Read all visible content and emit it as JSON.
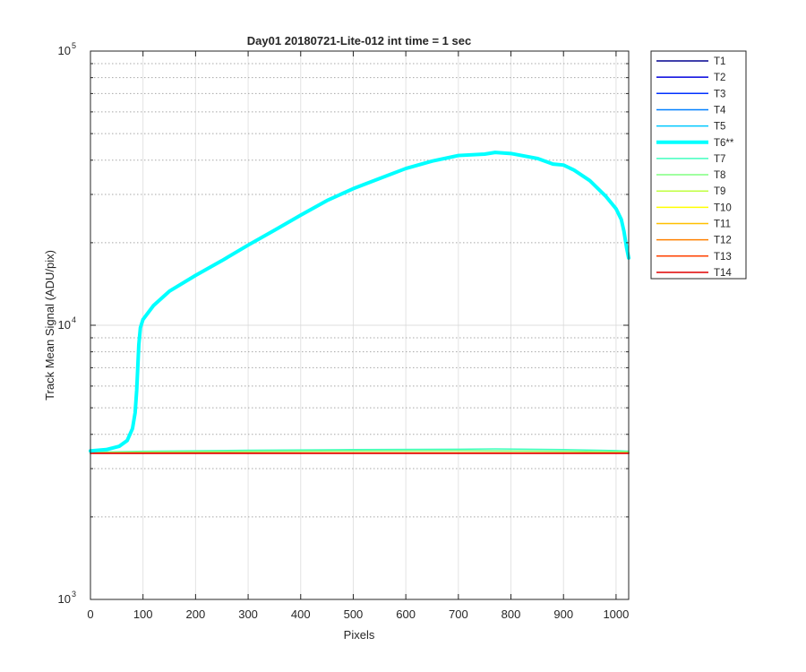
{
  "chart_data": {
    "type": "line",
    "title": "Day01 20180721-Lite-012 int time = 1 sec",
    "xlabel": "Pixels",
    "ylabel": "Track Mean Signal (ADU/pix)",
    "xlim": [
      0,
      1024
    ],
    "ylim": [
      1000,
      100000
    ],
    "yscale": "log",
    "grid": true,
    "legend_position": "outside-top-right",
    "x_ticks": [
      "0",
      "100",
      "200",
      "300",
      "400",
      "500",
      "600",
      "700",
      "800",
      "900",
      "1000"
    ],
    "y_ticks": [
      {
        "base": "10",
        "exp": "3"
      },
      {
        "base": "10",
        "exp": "4"
      },
      {
        "base": "10",
        "exp": "5"
      }
    ],
    "series": [
      {
        "name": "T1",
        "color": "#00008f",
        "width": 1.5,
        "x": [
          0,
          1024
        ],
        "y": [
          3420,
          3420
        ]
      },
      {
        "name": "T2",
        "color": "#0000dd",
        "width": 1.5,
        "x": [
          0,
          1024
        ],
        "y": [
          3420,
          3420
        ]
      },
      {
        "name": "T3",
        "color": "#0030ff",
        "width": 1.5,
        "x": [
          0,
          1024
        ],
        "y": [
          3420,
          3420
        ]
      },
      {
        "name": "T4",
        "color": "#0080ff",
        "width": 1.5,
        "x": [
          0,
          1024
        ],
        "y": [
          3420,
          3420
        ]
      },
      {
        "name": "T5",
        "color": "#00c8ff",
        "width": 1.5,
        "x": [
          0,
          1024
        ],
        "y": [
          3420,
          3420
        ]
      },
      {
        "name": "T6**",
        "color": "#00ffff",
        "width": 4,
        "x": [
          0,
          30,
          55,
          70,
          80,
          85,
          88,
          90,
          92,
          95,
          100,
          120,
          150,
          200,
          250,
          300,
          350,
          400,
          450,
          500,
          550,
          600,
          650,
          700,
          750,
          770,
          800,
          850,
          880,
          900,
          920,
          950,
          980,
          1000,
          1010,
          1015,
          1020,
          1024
        ],
        "y": [
          3480,
          3520,
          3620,
          3800,
          4200,
          4800,
          5800,
          7000,
          8500,
          9800,
          10500,
          11800,
          13300,
          15200,
          17200,
          19600,
          22200,
          25200,
          28500,
          31500,
          34300,
          37300,
          39700,
          41600,
          42100,
          42700,
          42300,
          40600,
          38700,
          38400,
          36800,
          33700,
          29600,
          26600,
          24300,
          22000,
          19200,
          17600
        ]
      },
      {
        "name": "T7",
        "color": "#40ffbf",
        "width": 1.5,
        "x": [
          0,
          100,
          300,
          500,
          700,
          770,
          900,
          1000,
          1024
        ],
        "y": [
          3440,
          3470,
          3500,
          3520,
          3530,
          3540,
          3520,
          3490,
          3470
        ]
      },
      {
        "name": "T8",
        "color": "#80ff80",
        "width": 1.5,
        "x": [
          0,
          100,
          300,
          500,
          700,
          900,
          1024
        ],
        "y": [
          3430,
          3450,
          3470,
          3485,
          3490,
          3475,
          3450
        ]
      },
      {
        "name": "T9",
        "color": "#c0ff40",
        "width": 1.5,
        "x": [
          0,
          1024
        ],
        "y": [
          3425,
          3430
        ]
      },
      {
        "name": "T10",
        "color": "#ffff00",
        "width": 1.5,
        "x": [
          0,
          1024
        ],
        "y": [
          3420,
          3420
        ]
      },
      {
        "name": "T11",
        "color": "#ffbf00",
        "width": 1.5,
        "x": [
          0,
          1024
        ],
        "y": [
          3420,
          3420
        ]
      },
      {
        "name": "T12",
        "color": "#ff8000",
        "width": 1.5,
        "x": [
          0,
          1024
        ],
        "y": [
          3420,
          3420
        ]
      },
      {
        "name": "T13",
        "color": "#ff4000",
        "width": 1.5,
        "x": [
          0,
          1024
        ],
        "y": [
          3415,
          3415
        ]
      },
      {
        "name": "T14",
        "color": "#e00000",
        "width": 1.5,
        "x": [
          0,
          1024
        ],
        "y": [
          3410,
          3410
        ]
      }
    ]
  }
}
